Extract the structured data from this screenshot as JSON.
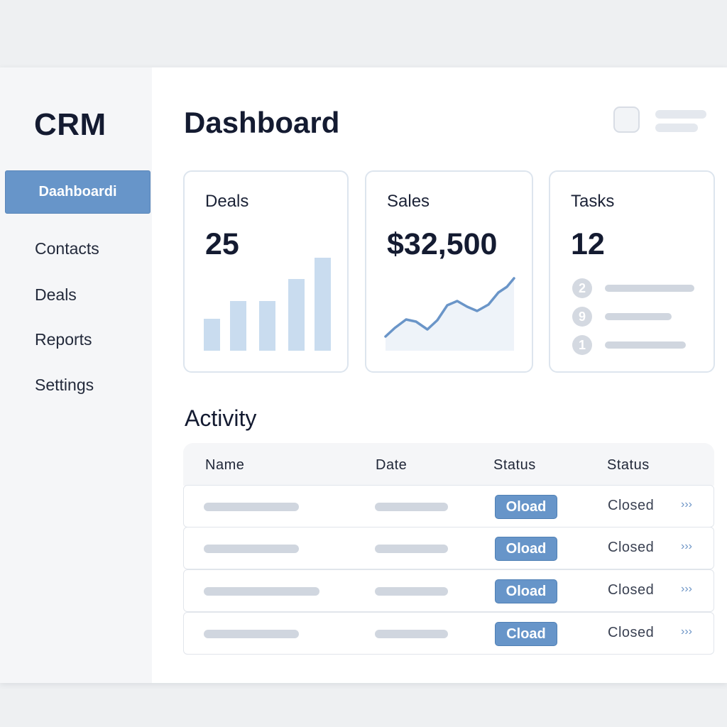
{
  "sidebar": {
    "brand": "CRM",
    "items": [
      {
        "label": "Daahboardi",
        "active": true
      },
      {
        "label": "Contacts"
      },
      {
        "label": "Deals"
      },
      {
        "label": "Reports"
      },
      {
        "label": "Settings"
      }
    ]
  },
  "header": {
    "title": "Dashboard",
    "icons": [
      "avatar-placeholder-icon",
      "menu-lines-icon"
    ]
  },
  "cards": {
    "deals": {
      "title": "Deals",
      "value": "25",
      "chart_icon": "bar-chart-icon"
    },
    "sales": {
      "title": "Sales",
      "value": "$32,500",
      "chart_icon": "line-chart-icon"
    },
    "tasks": {
      "title": "Tasks",
      "value": "12",
      "items": [
        "2",
        "9",
        "1"
      ]
    }
  },
  "activity": {
    "title": "Activity",
    "columns": [
      "Name",
      "Date",
      "Status",
      "Status"
    ],
    "rows": [
      {
        "badge": "Oload",
        "status": "Closed",
        "more": "›››"
      },
      {
        "badge": "Oload",
        "status": "Closed",
        "more": "›››"
      },
      {
        "badge": "Oload",
        "status": "Closed",
        "more": "›››"
      },
      {
        "badge": "Cload",
        "status": "Closed",
        "more": "›››"
      }
    ]
  },
  "colors": {
    "accent": "#6795c9",
    "chart_fill": "#c9dcef",
    "line": "#6a95c8",
    "placeholder": "#d0d6df"
  }
}
